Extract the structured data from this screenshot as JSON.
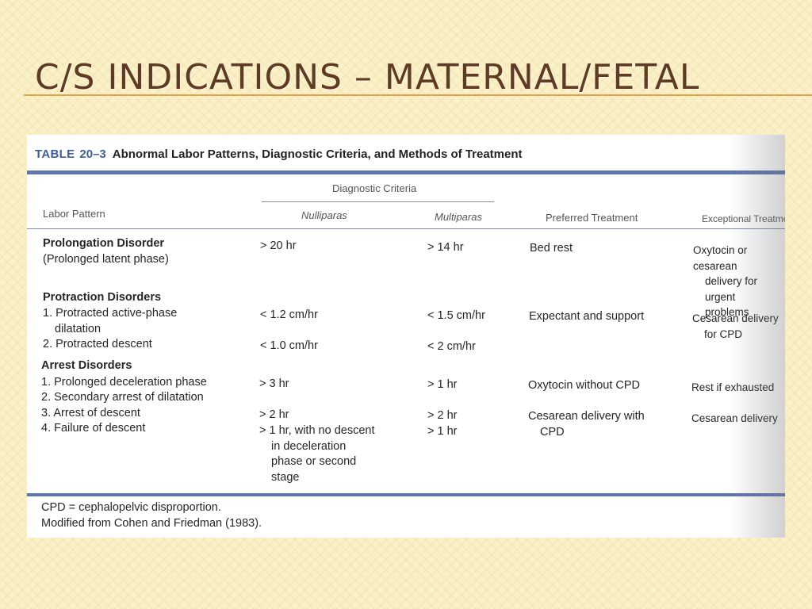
{
  "slide": {
    "title": "C/S indications – Maternal/Fetal"
  },
  "table": {
    "label": "TABLE",
    "number": "20–3",
    "caption": "Abnormal Labor Patterns, Diagnostic Criteria, and Methods of Treatment",
    "headers": {
      "diagnostic_criteria": "Diagnostic Criteria",
      "labor_pattern": "Labor Pattern",
      "nulliparas": "Nulliparas",
      "multiparas": "Multiparas",
      "preferred_treatment": "Preferred Treatment",
      "exceptional_treatment": "Exceptional Treatment"
    },
    "prolongation": {
      "title": "Prolongation Disorder",
      "subtitle": "(Prolonged latent phase)",
      "nulli": "> 20 hr",
      "multi": "> 14 hr",
      "preferred": "Bed rest",
      "exceptional": [
        "Oxytocin or cesarean",
        "delivery for urgent",
        "problems"
      ]
    },
    "protraction": {
      "title": "Protraction Disorders",
      "item1_line1": "1. Protracted active-phase",
      "item1_line2": "dilatation",
      "item2": "2. Protracted descent",
      "nulli1": "< 1.2 cm/hr",
      "nulli2": "< 1.0 cm/hr",
      "multi1": "< 1.5 cm/hr",
      "multi2": "< 2 cm/hr",
      "preferred": "Expectant and support",
      "exceptional": [
        "Cesarean delivery",
        "for CPD"
      ]
    },
    "arrest": {
      "title": "Arrest Disorders",
      "item1": "1. Prolonged deceleration phase",
      "item2": "2. Secondary arrest of dilatation",
      "item3": "3. Arrest of descent",
      "item4": "4. Failure of descent",
      "nulli1": "> 3 hr",
      "nulli2": "> 2 hr",
      "nulli3": [
        "> 1 hr, with no descent",
        "in deceleration",
        "phase or second",
        "stage"
      ],
      "multi1": "> 1 hr",
      "multi2": "> 2 hr",
      "multi3": "> 1 hr",
      "preferred1": "Oxytocin without CPD",
      "preferred2": [
        "Cesarean delivery with",
        "CPD"
      ],
      "exceptional1": "Rest if exhausted",
      "exceptional2": "Cesarean delivery"
    },
    "footnotes": [
      "CPD = cephalopelvic disproportion.",
      "Modified from Cohen and Friedman (1983)."
    ]
  }
}
